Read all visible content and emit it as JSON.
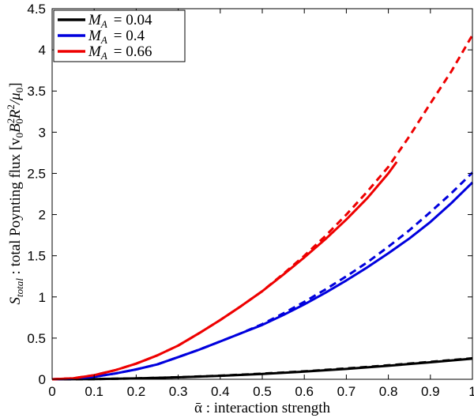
{
  "chart_data": {
    "type": "line",
    "xlabel": "ᾱ : interaction strength",
    "ylabel": "S_total : total Poynting flux [v₀B₀²R²/μ₀]",
    "xlim": [
      0,
      1
    ],
    "ylim": [
      0,
      4.5
    ],
    "xticks": [
      "0",
      "0.1",
      "0.2",
      "0.3",
      "0.4",
      "0.5",
      "0.6",
      "0.7",
      "0.8",
      "0.9",
      "1"
    ],
    "yticks": [
      "0",
      "0.5",
      "1",
      "1.5",
      "2",
      "2.5",
      "3",
      "3.5",
      "4",
      "4.5"
    ],
    "grid": false,
    "legend_position": "top-left",
    "series": [
      {
        "name": "M_A = 0.04",
        "color": "#000000",
        "solid": {
          "x": [
            0,
            0.1,
            0.2,
            0.3,
            0.4,
            0.5,
            0.6,
            0.7,
            0.8,
            0.9,
            1.0
          ],
          "y": [
            0,
            0.003,
            0.011,
            0.024,
            0.042,
            0.065,
            0.093,
            0.126,
            0.164,
            0.206,
            0.25
          ]
        },
        "dashed": {
          "x": [
            0,
            0.1,
            0.2,
            0.3,
            0.4,
            0.5,
            0.6,
            0.7,
            0.8,
            0.9,
            1.0
          ],
          "y": [
            0,
            0.003,
            0.011,
            0.025,
            0.044,
            0.068,
            0.097,
            0.131,
            0.17,
            0.212,
            0.255
          ]
        }
      },
      {
        "name": "M_A = 0.4",
        "color": "#0000dd",
        "solid": {
          "x": [
            0,
            0.05,
            0.1,
            0.15,
            0.2,
            0.25,
            0.3,
            0.35,
            0.4,
            0.45,
            0.5,
            0.55,
            0.6,
            0.65,
            0.7,
            0.75,
            0.8,
            0.85,
            0.9,
            0.95,
            1.0
          ],
          "y": [
            0,
            0.008,
            0.03,
            0.07,
            0.12,
            0.18,
            0.27,
            0.36,
            0.46,
            0.56,
            0.66,
            0.78,
            0.91,
            1.05,
            1.2,
            1.36,
            1.53,
            1.71,
            1.91,
            2.14,
            2.39
          ]
        },
        "dashed": {
          "x": [
            0,
            0.05,
            0.1,
            0.15,
            0.2,
            0.25,
            0.3,
            0.35,
            0.4,
            0.45,
            0.5,
            0.55,
            0.6,
            0.65,
            0.7,
            0.75,
            0.8,
            0.85,
            0.9,
            0.95,
            1.0
          ],
          "y": [
            0,
            0.008,
            0.03,
            0.07,
            0.12,
            0.18,
            0.27,
            0.36,
            0.46,
            0.56,
            0.67,
            0.8,
            0.94,
            1.09,
            1.25,
            1.42,
            1.61,
            1.81,
            2.03,
            2.26,
            2.51
          ]
        }
      },
      {
        "name": "M_A = 0.66",
        "color": "#ee0000",
        "solid": {
          "x": [
            0,
            0.05,
            0.1,
            0.15,
            0.2,
            0.25,
            0.3,
            0.35,
            0.4,
            0.45,
            0.5,
            0.55,
            0.6,
            0.65,
            0.7,
            0.75,
            0.8,
            0.82
          ],
          "y": [
            0,
            0.012,
            0.05,
            0.11,
            0.19,
            0.29,
            0.41,
            0.56,
            0.72,
            0.89,
            1.07,
            1.27,
            1.48,
            1.7,
            1.94,
            2.2,
            2.5,
            2.64
          ]
        },
        "dashed": {
          "x": [
            0,
            0.05,
            0.1,
            0.15,
            0.2,
            0.25,
            0.3,
            0.35,
            0.4,
            0.45,
            0.5,
            0.55,
            0.6,
            0.65,
            0.7,
            0.75,
            0.8,
            0.85,
            0.9,
            0.95,
            1.0
          ],
          "y": [
            0,
            0.012,
            0.05,
            0.11,
            0.19,
            0.29,
            0.41,
            0.56,
            0.72,
            0.89,
            1.07,
            1.28,
            1.5,
            1.74,
            2.0,
            2.28,
            2.58,
            2.95,
            3.35,
            3.74,
            4.18
          ]
        }
      }
    ]
  },
  "legend": {
    "entries": [
      {
        "name": "M_A = 0.04",
        "sym": "M",
        "sub": "A",
        "value": "=  0.04",
        "color": "#000000"
      },
      {
        "name": "M_A = 0.4",
        "sym": "M",
        "sub": "A",
        "value": "=  0.4",
        "color": "#0000dd"
      },
      {
        "name": "M_A = 0.66",
        "sym": "M",
        "sub": "A",
        "value": "=  0.66",
        "color": "#ee0000"
      }
    ]
  },
  "labels": {
    "x_main": "ᾱ : interaction strength",
    "y_main": "S",
    "y_sub": "total",
    "y_text": " : total Poynting flux [v",
    "y_b": "B",
    "y_r": "R",
    "y_mu": "/μ",
    "sub_0": "0",
    "sup_2": "2",
    "y_close": "]"
  }
}
